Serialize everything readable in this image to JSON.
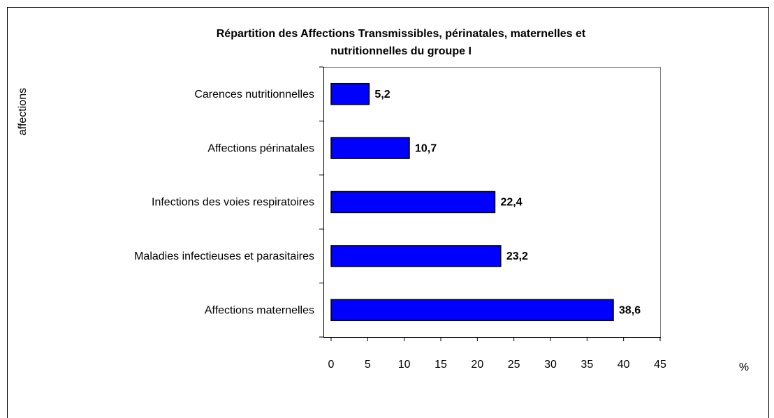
{
  "chart_data": {
    "type": "barh",
    "title": "Répartition des Affections Transmissibles, périnatales, maternelles et nutritionnelles du groupe I",
    "y_label": "affections",
    "x_label": "%",
    "categories": [
      "Carences nutritionnelles",
      "Affections périnatales",
      "Infections des voies respiratoires",
      "Maladies infectieuses et parasitaires",
      "Affections maternelles"
    ],
    "values": [
      5.2,
      10.7,
      22.4,
      23.2,
      38.6
    ],
    "value_labels": [
      "5,2",
      "10,7",
      "22,4",
      "23,2",
      "38,6"
    ],
    "color": "#0000ff",
    "xlim": [
      0,
      45
    ],
    "xticks": [
      0,
      5,
      10,
      15,
      20,
      25,
      30,
      35,
      40,
      45
    ]
  }
}
